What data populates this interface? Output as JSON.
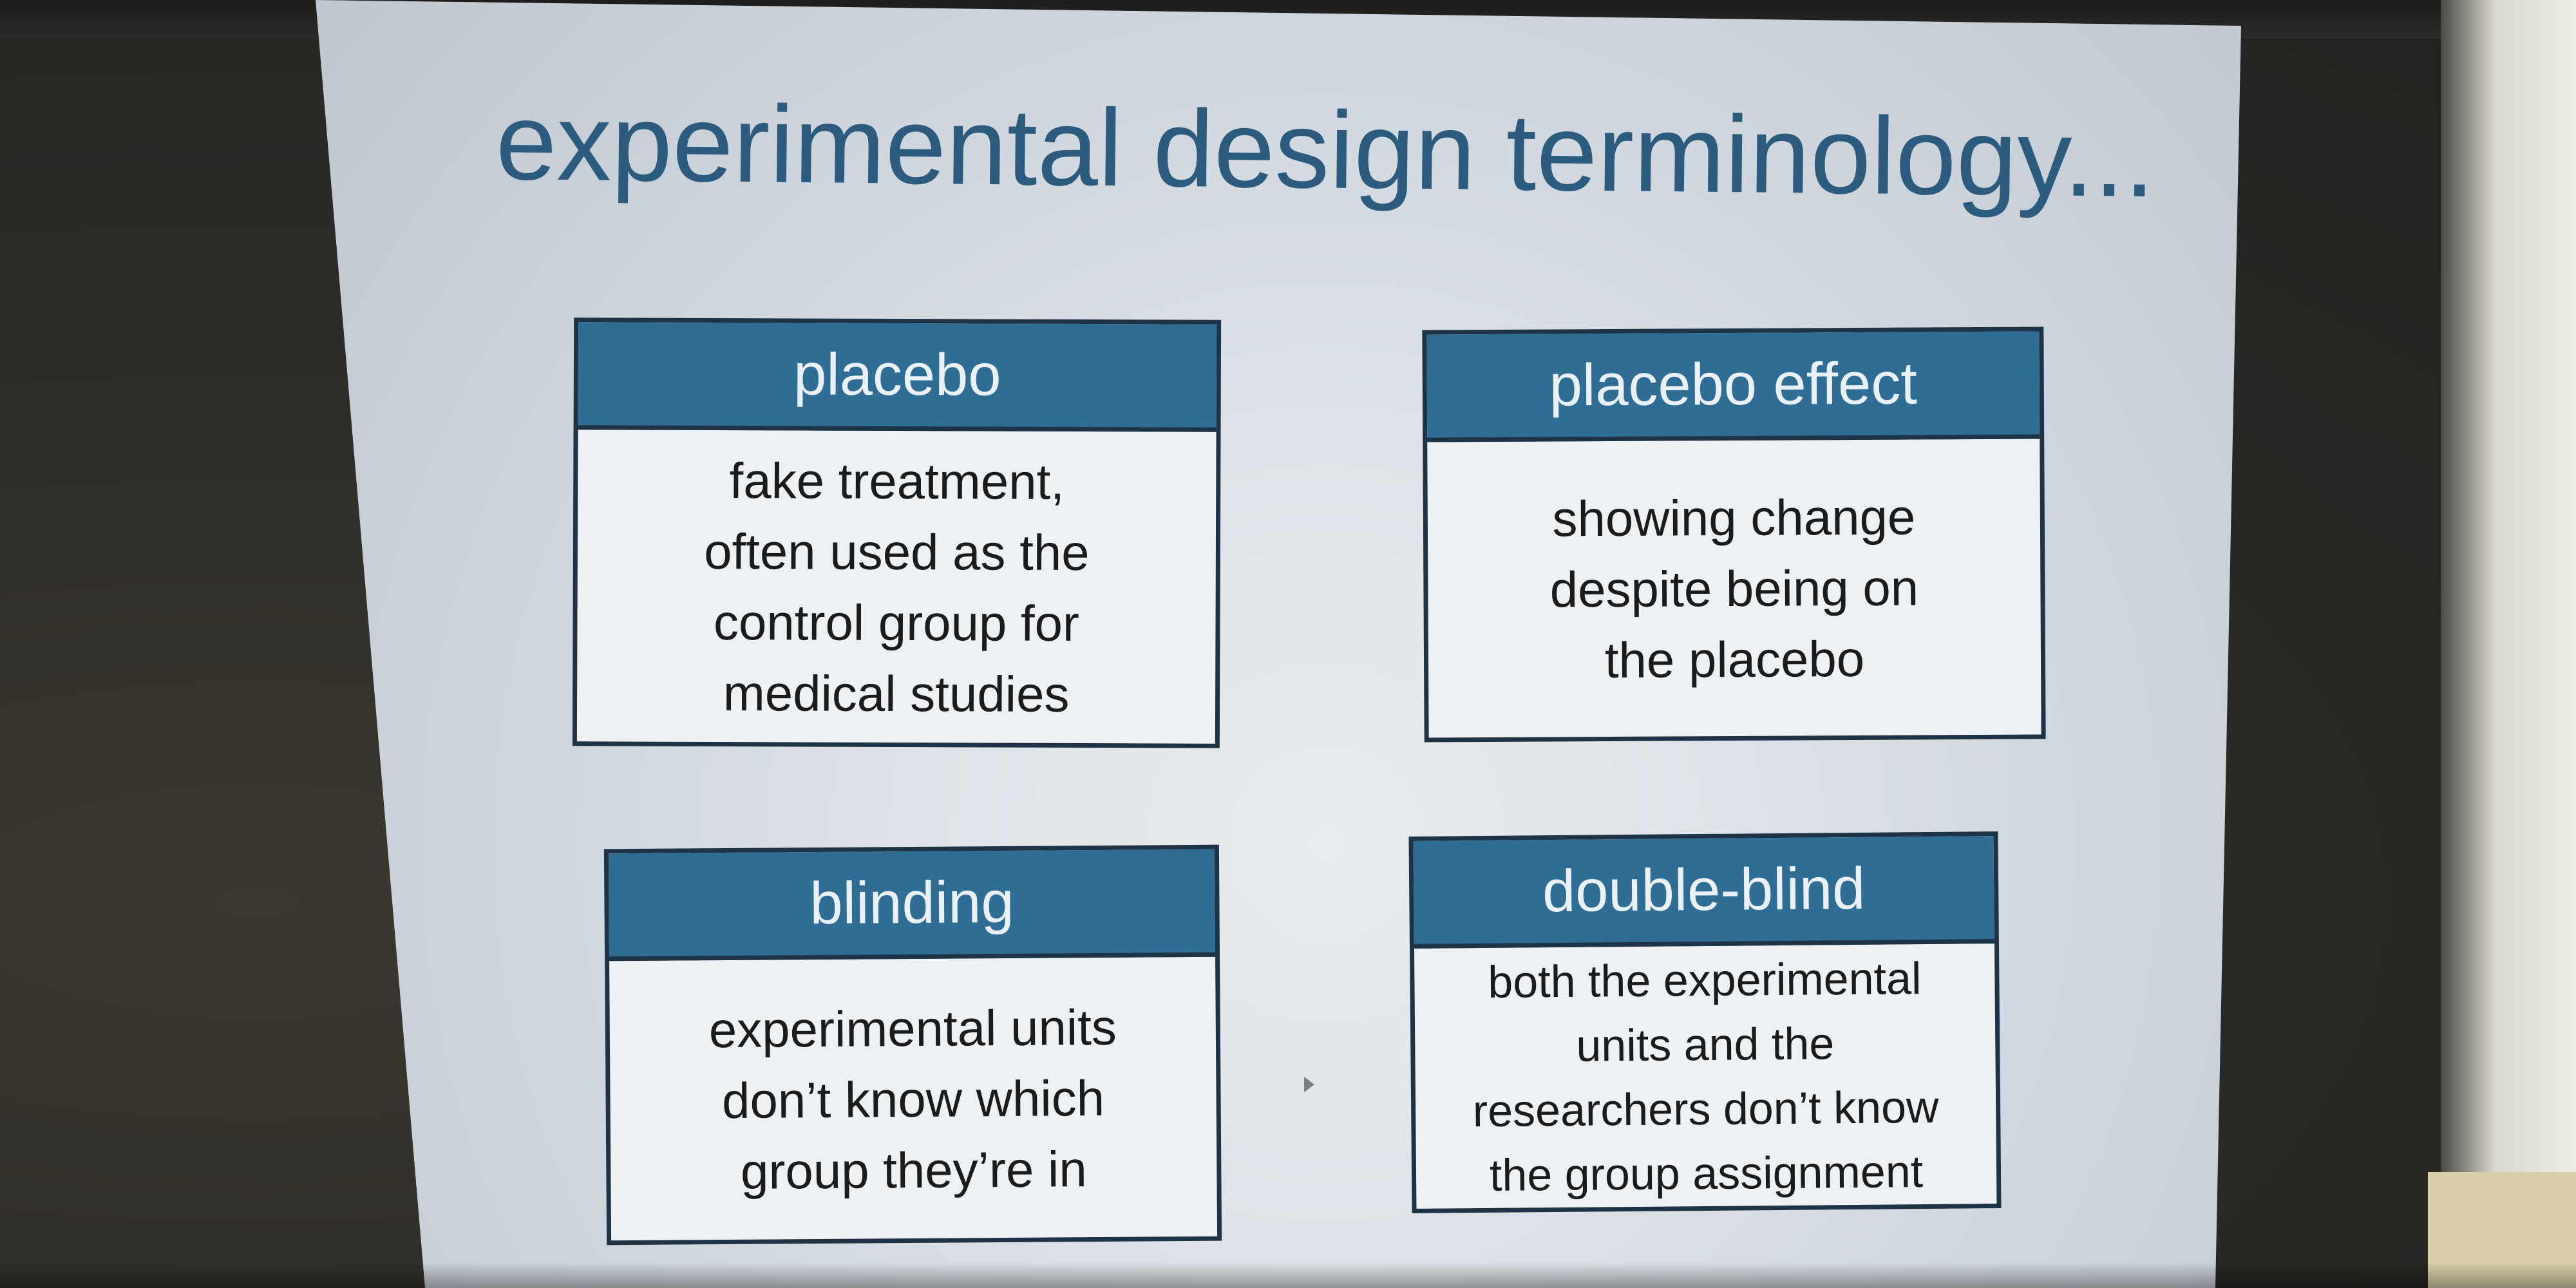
{
  "slide": {
    "title": "experimental design terminology...",
    "cards": [
      {
        "heading": "placebo",
        "lines": [
          "fake treatment,",
          "often used as the",
          "control group for",
          "medical studies"
        ]
      },
      {
        "heading": "placebo effect",
        "lines": [
          "showing change",
          "despite being on",
          "the placebo"
        ]
      },
      {
        "heading": "blinding",
        "lines": [
          "experimental units",
          "don’t know which",
          "group they’re in"
        ]
      },
      {
        "heading": "double-blind",
        "lines": [
          "both the experimental",
          "units and the",
          "researchers don’t know",
          "the group assignment"
        ]
      }
    ]
  },
  "colors": {
    "title_text": "#2c5b7d",
    "card_header": "#2f6d95",
    "card_border": "#1f3347",
    "card_body": "#eef1f3"
  },
  "icons": {
    "pointer": "mouse-pointer-icon"
  }
}
